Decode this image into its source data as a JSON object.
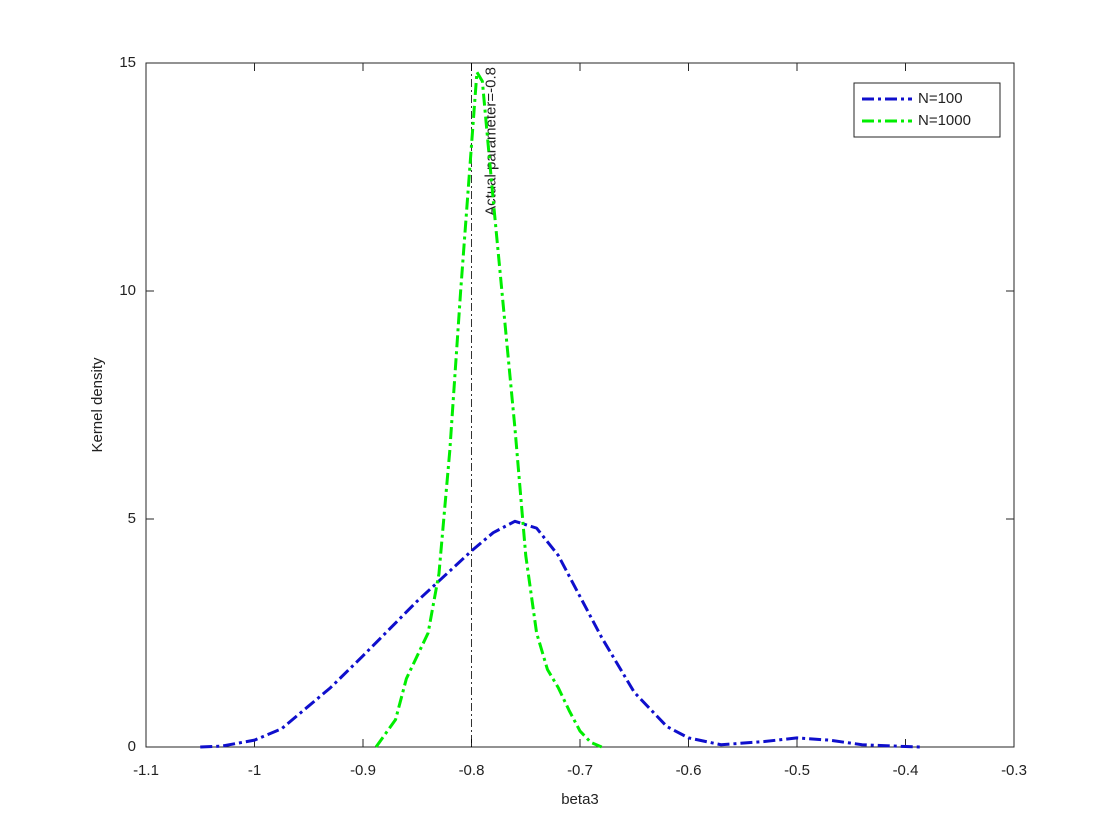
{
  "chart_data": {
    "type": "line",
    "xlabel": "beta3",
    "ylabel": "Kernel density",
    "xlim": [
      -1.1,
      -0.3
    ],
    "xticks": [
      -1.1,
      -1,
      -0.9,
      -0.8,
      -0.7,
      -0.6,
      -0.5,
      -0.4,
      -0.3
    ],
    "ylim": [
      0,
      15
    ],
    "yticks": [
      0,
      5,
      10,
      15
    ],
    "legend": "northeast",
    "reference_line": {
      "x": -0.8,
      "label": "Actual parameter=-0.8",
      "color": "#000000"
    },
    "series": [
      {
        "name": "N=100",
        "color": "#0f0fcc",
        "x": [
          -1.05,
          -1.03,
          -1.0,
          -0.975,
          -0.95,
          -0.93,
          -0.9,
          -0.85,
          -0.8,
          -0.78,
          -0.76,
          -0.74,
          -0.72,
          -0.7,
          -0.68,
          -0.65,
          -0.62,
          -0.6,
          -0.57,
          -0.53,
          -0.5,
          -0.47,
          -0.44,
          -0.4,
          -0.385
        ],
        "values": [
          0,
          0.02,
          0.15,
          0.4,
          0.9,
          1.3,
          2.0,
          3.2,
          4.3,
          4.7,
          4.95,
          4.8,
          4.2,
          3.3,
          2.4,
          1.2,
          0.45,
          0.2,
          0.05,
          0.12,
          0.2,
          0.15,
          0.05,
          0.01,
          0
        ]
      },
      {
        "name": "N=1000",
        "color": "#00ee00",
        "x": [
          -0.888,
          -0.87,
          -0.86,
          -0.85,
          -0.84,
          -0.83,
          -0.82,
          -0.81,
          -0.8,
          -0.795,
          -0.79,
          -0.78,
          -0.77,
          -0.76,
          -0.75,
          -0.74,
          -0.73,
          -0.72,
          -0.71,
          -0.7,
          -0.69,
          -0.68
        ],
        "values": [
          0,
          0.6,
          1.5,
          2.0,
          2.5,
          3.8,
          6.5,
          10,
          13.2,
          14.8,
          14.6,
          12,
          9.5,
          7,
          4.2,
          2.5,
          1.7,
          1.3,
          0.8,
          0.35,
          0.1,
          0
        ]
      }
    ]
  }
}
